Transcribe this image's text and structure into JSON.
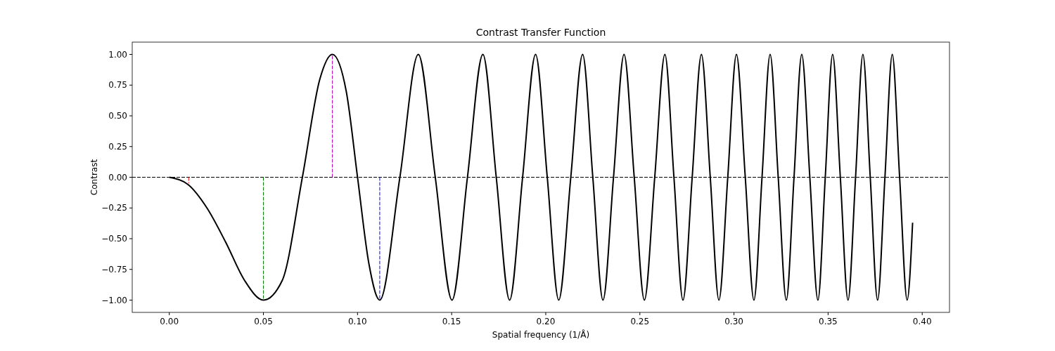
{
  "chart_data": {
    "type": "line",
    "title": "Contrast Transfer Function",
    "xlabel": "Spatial frequency (1/Å)",
    "ylabel": "Contrast",
    "xlim": [
      -0.0197,
      0.4145
    ],
    "ylim": [
      -1.1,
      1.1
    ],
    "xticks": [
      {
        "value": 0,
        "label": "0.00"
      },
      {
        "value": 0.05,
        "label": "0.05"
      },
      {
        "value": 0.1,
        "label": "0.10"
      },
      {
        "value": 0.15,
        "label": "0.15"
      },
      {
        "value": 0.2,
        "label": "0.20"
      },
      {
        "value": 0.25,
        "label": "0.25"
      },
      {
        "value": 0.3,
        "label": "0.30"
      },
      {
        "value": 0.35,
        "label": "0.35"
      },
      {
        "value": 0.4,
        "label": "0.40"
      }
    ],
    "yticks": [
      {
        "value": -1,
        "label": "−1.00"
      },
      {
        "value": -0.75,
        "label": "−0.75"
      },
      {
        "value": -0.5,
        "label": "−0.50"
      },
      {
        "value": -0.25,
        "label": "−0.25"
      },
      {
        "value": 0,
        "label": "0.00"
      },
      {
        "value": 0.25,
        "label": "0.25"
      },
      {
        "value": 0.5,
        "label": "0.50"
      },
      {
        "value": 0.75,
        "label": "0.75"
      },
      {
        "value": 1,
        "label": "1.00"
      }
    ],
    "grid": false,
    "ref_lines": [
      {
        "axis": "y",
        "value": 0,
        "color": "#000000",
        "line_style": "dashed"
      }
    ],
    "series": [
      {
        "color": "#000000",
        "line_style": "solid",
        "x": [
          0,
          0.01,
          0.02,
          0.03,
          0.04,
          0.05,
          0.06,
          0.0707,
          0.08,
          0.0866,
          0.094,
          0.1,
          0.106,
          0.1118,
          0.1225,
          0.1323,
          0.1413,
          0.1502,
          0.1584,
          0.1666,
          0.1737,
          0.1808,
          0.1877,
          0.1946,
          0.2008,
          0.2069,
          0.2133,
          0.2196,
          0.225,
          0.2304,
          0.236,
          0.2416,
          0.247,
          0.2524,
          0.2579,
          0.2633,
          0.2681,
          0.2729,
          0.2778,
          0.2827,
          0.2874,
          0.292,
          0.2967,
          0.3013,
          0.306,
          0.3106,
          0.3149,
          0.3192,
          0.3235,
          0.3278,
          0.3319,
          0.336,
          0.3403,
          0.3446,
          0.3485,
          0.3524,
          0.3565,
          0.3606,
          0.3646,
          0.3685,
          0.3724,
          0.3763,
          0.3802,
          0.3841,
          0.388,
          0.392,
          0.3949
        ],
        "values": [
          0,
          -0.06,
          -0.25,
          -0.53,
          -0.84,
          -1,
          -0.84,
          0,
          0.8,
          1,
          0.7,
          0,
          -0.7,
          -1,
          0,
          1,
          0,
          -1,
          0,
          1,
          0,
          -1,
          0,
          1,
          0,
          -1,
          0,
          1,
          0,
          -1,
          0,
          1,
          0,
          -1,
          0,
          1,
          0,
          -1,
          0,
          1,
          0,
          -1,
          0,
          1,
          0,
          -1,
          0,
          1,
          0,
          -1,
          0,
          1,
          0,
          -1,
          0,
          1,
          0,
          -1,
          0,
          1,
          0,
          -1,
          0,
          1,
          0,
          -1,
          -0.37
        ]
      },
      {
        "color": "#ff0000",
        "line_style": "dashed",
        "x": [
          0.0103,
          0.0103
        ],
        "values": [
          0,
          -0.05
        ]
      },
      {
        "color": "#008000",
        "line_style": "dashed",
        "x": [
          0.05,
          0.05
        ],
        "values": [
          0,
          -1
        ]
      },
      {
        "color": "#bf00bf",
        "line_style": "dashed",
        "x": [
          0.0866,
          0.0866
        ],
        "values": [
          0,
          1
        ]
      },
      {
        "color": "#0000ff",
        "line_style": "dashed",
        "x": [
          0.1118,
          0.1118
        ],
        "values": [
          0,
          -1
        ]
      }
    ]
  }
}
